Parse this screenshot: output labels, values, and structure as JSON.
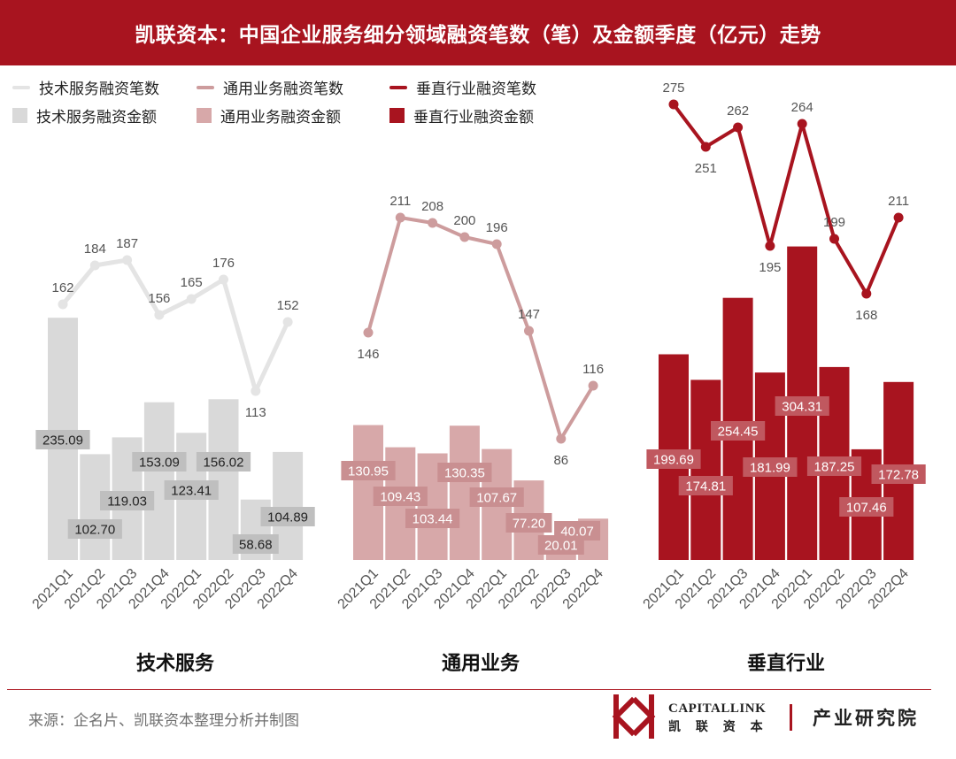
{
  "header": {
    "title": "凯联资本：中国企业服务细分领域融资笔数（笔）及金额季度（亿元）走势"
  },
  "legend": {
    "line_labels": [
      "技术服务融资笔数",
      "通用业务融资笔数",
      "垂直行业融资笔数"
    ],
    "bar_labels": [
      "技术服务融资金额",
      "通用业务融资金额",
      "垂直行业融资金额"
    ]
  },
  "footer": {
    "source": "来源：企名片、凯联资本整理分析并制图",
    "logo_en": "CAPITALLINK",
    "logo_cn": "凯 联 资 本",
    "institute": "产业研究院",
    "logo_icon": "capitallink-logo-icon"
  },
  "chart_data": [
    {
      "type": "bar+line",
      "title": "技术服务",
      "categories": [
        "2021Q1",
        "2021Q2",
        "2021Q3",
        "2021Q4",
        "2022Q1",
        "2022Q2",
        "2022Q3",
        "2022Q4"
      ],
      "series": [
        {
          "name": "技术服务融资金额",
          "kind": "bar",
          "color": "#d9d9d9",
          "label_bg": "#bfbfbf",
          "label_color": "#222222",
          "values": [
            235.09,
            102.7,
            119.03,
            153.09,
            123.41,
            156.02,
            58.68,
            104.89
          ],
          "labels": [
            "235.09",
            "102.70",
            "119.03",
            "153.09",
            "123.41",
            "156.02",
            "58.68",
            "104.89"
          ]
        },
        {
          "name": "技术服务融资笔数",
          "kind": "line",
          "color": "#e4e4e4",
          "values": [
            162,
            184,
            187,
            156,
            165,
            176,
            113,
            152
          ]
        }
      ]
    },
    {
      "type": "bar+line",
      "title": "通用业务",
      "categories": [
        "2021Q1",
        "2021Q2",
        "2021Q3",
        "2021Q4",
        "2022Q1",
        "2022Q2",
        "2022Q3",
        "2022Q4"
      ],
      "series": [
        {
          "name": "通用业务融资金额",
          "kind": "bar",
          "color": "#d7a8a9",
          "label_bg": "#c98f91",
          "label_color": "#ffffff",
          "values": [
            130.95,
            109.43,
            103.44,
            130.35,
            107.67,
            77.2,
            20.01,
            40.07
          ],
          "labels": [
            "130.95",
            "109.43",
            "103.44",
            "130.35",
            "107.67",
            "77.20",
            "20.01",
            "40.07"
          ]
        },
        {
          "name": "通用业务融资笔数",
          "kind": "line",
          "color": "#cd9c9d",
          "values": [
            146,
            211,
            208,
            200,
            196,
            147,
            86,
            116
          ]
        }
      ]
    },
    {
      "type": "bar+line",
      "title": "垂直行业",
      "categories": [
        "2021Q1",
        "2021Q2",
        "2021Q3",
        "2021Q4",
        "2022Q1",
        "2022Q2",
        "2022Q3",
        "2022Q4"
      ],
      "series": [
        {
          "name": "垂直行业融资金额",
          "kind": "bar",
          "color": "#a8141f",
          "label_bg": "#c0585f",
          "label_color": "#ffffff",
          "values": [
            199.69,
            174.81,
            254.45,
            181.99,
            304.31,
            187.25,
            107.46,
            172.78
          ],
          "labels": [
            "199.69",
            "174.81",
            "254.45",
            "181.99",
            "304.31",
            "187.25",
            "107.46",
            "172.78"
          ]
        },
        {
          "name": "垂直行业融资笔数",
          "kind": "line",
          "color": "#a8141f",
          "values": [
            275,
            251,
            262,
            195,
            264,
            199,
            168,
            211
          ]
        }
      ]
    }
  ]
}
